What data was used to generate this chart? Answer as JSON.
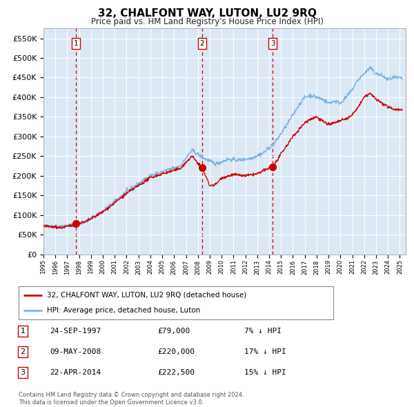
{
  "title": "32, CHALFONT WAY, LUTON, LU2 9RQ",
  "subtitle": "Price paid vs. HM Land Registry's House Price Index (HPI)",
  "background_color": "#ffffff",
  "plot_bg_color": "#dce9f5",
  "hpi_color": "#7fb4e0",
  "price_color": "#cc0000",
  "sale_marker_color": "#cc0000",
  "dashed_line_color": "#cc0000",
  "ylim": [
    0,
    575000
  ],
  "yticks": [
    0,
    50000,
    100000,
    150000,
    200000,
    250000,
    300000,
    350000,
    400000,
    450000,
    500000,
    550000
  ],
  "xlim_start": 1995.0,
  "xlim_end": 2025.5,
  "sale_events": [
    {
      "num": 1,
      "date": "24-SEP-1997",
      "year": 1997.73,
      "price": 79000,
      "pct": "7%",
      "dir": "↓"
    },
    {
      "num": 2,
      "date": "09-MAY-2008",
      "year": 2008.36,
      "price": 220000,
      "pct": "17%",
      "dir": "↓"
    },
    {
      "num": 3,
      "date": "22-APR-2014",
      "year": 2014.31,
      "price": 222500,
      "pct": "15%",
      "dir": "↓"
    }
  ],
  "legend_label_red": "32, CHALFONT WAY, LUTON, LU2 9RQ (detached house)",
  "legend_label_blue": "HPI: Average price, detached house, Luton",
  "footer_line1": "Contains HM Land Registry data © Crown copyright and database right 2024.",
  "footer_line2": "This data is licensed under the Open Government Licence v3.0."
}
